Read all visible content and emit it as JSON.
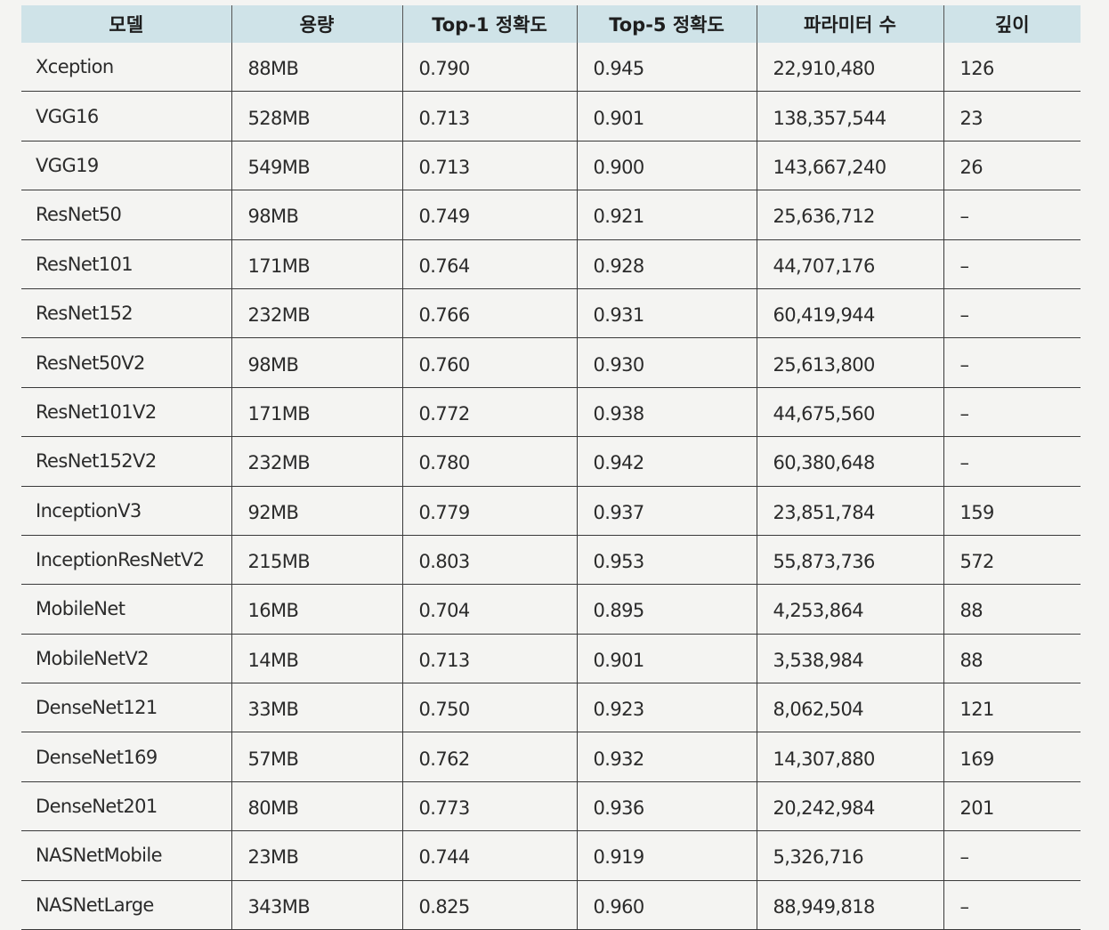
{
  "table": {
    "headers": [
      "모델",
      "용량",
      "Top-1 정확도",
      "Top-5 정확도",
      "파라미터 수",
      "깊이"
    ],
    "rows": [
      [
        "Xception",
        "88MB",
        "0.790",
        "0.945",
        "22,910,480",
        "126"
      ],
      [
        "VGG16",
        "528MB",
        "0.713",
        "0.901",
        "138,357,544",
        "23"
      ],
      [
        "VGG19",
        "549MB",
        "0.713",
        "0.900",
        "143,667,240",
        "26"
      ],
      [
        "ResNet50",
        "98MB",
        "0.749",
        "0.921",
        "25,636,712",
        "–"
      ],
      [
        "ResNet101",
        "171MB",
        "0.764",
        "0.928",
        "44,707,176",
        "–"
      ],
      [
        "ResNet152",
        "232MB",
        "0.766",
        "0.931",
        "60,419,944",
        "–"
      ],
      [
        "ResNet50V2",
        "98MB",
        "0.760",
        "0.930",
        "25,613,800",
        "–"
      ],
      [
        "ResNet101V2",
        "171MB",
        "0.772",
        "0.938",
        "44,675,560",
        "–"
      ],
      [
        "ResNet152V2",
        "232MB",
        "0.780",
        "0.942",
        "60,380,648",
        "–"
      ],
      [
        "InceptionV3",
        "92MB",
        "0.779",
        "0.937",
        "23,851,784",
        "159"
      ],
      [
        "InceptionResNetV2",
        "215MB",
        "0.803",
        "0.953",
        "55,873,736",
        "572"
      ],
      [
        "MobileNet",
        "16MB",
        "0.704",
        "0.895",
        "4,253,864",
        "88"
      ],
      [
        "MobileNetV2",
        "14MB",
        "0.713",
        "0.901",
        "3,538,984",
        "88"
      ],
      [
        "DenseNet121",
        "33MB",
        "0.750",
        "0.923",
        "8,062,504",
        "121"
      ],
      [
        "DenseNet169",
        "57MB",
        "0.762",
        "0.932",
        "14,307,880",
        "169"
      ],
      [
        "DenseNet201",
        "80MB",
        "0.773",
        "0.936",
        "20,242,984",
        "201"
      ],
      [
        "NASNetMobile",
        "23MB",
        "0.744",
        "0.919",
        "5,326,716",
        "–"
      ],
      [
        "NASNetLarge",
        "343MB",
        "0.825",
        "0.960",
        "88,949,818",
        "–"
      ]
    ]
  }
}
